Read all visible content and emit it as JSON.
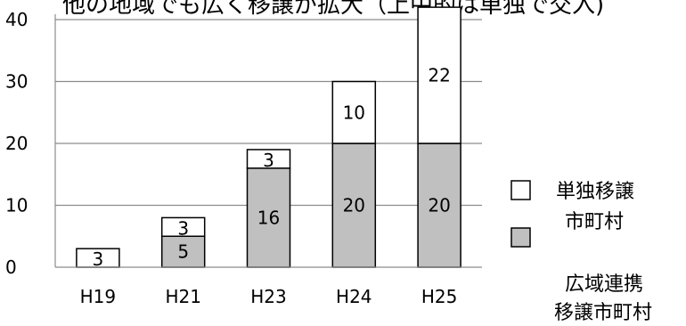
{
  "chart_data": {
    "type": "bar",
    "stacked": true,
    "title": "他の地域でも広く移譲が拡大（上中的は単独で交入)",
    "categories": [
      "H19",
      "H21",
      "H23",
      "H24",
      "H25"
    ],
    "series": [
      {
        "name": "広域連携 移譲市町村",
        "values": [
          0,
          5,
          16,
          20,
          20
        ],
        "color": "#c0c0c0"
      },
      {
        "name": "単独移譲 市町村",
        "values": [
          3,
          3,
          3,
          10,
          22
        ],
        "color": "#ffffff"
      }
    ],
    "ylim": [
      0,
      40
    ],
    "yticks": [
      "0",
      "10",
      "20",
      "30",
      "40"
    ],
    "grid": true,
    "legend": [
      {
        "line1": "単独移譲",
        "line2": "市町村",
        "color": "#ffffff"
      },
      {
        "line1": "広域連携",
        "line2": "移譲市町村",
        "color": "#c0c0c0"
      }
    ],
    "legend_position": "right"
  }
}
